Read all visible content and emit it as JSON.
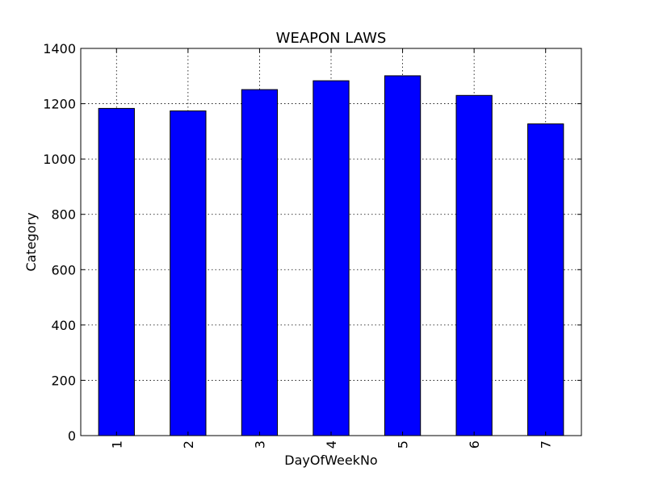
{
  "chart_data": {
    "type": "bar",
    "title": "WEAPON LAWS",
    "xlabel": "DayOfWeekNo",
    "ylabel": "Category",
    "categories": [
      "1",
      "2",
      "3",
      "4",
      "5",
      "6",
      "7"
    ],
    "values": [
      1183,
      1174,
      1251,
      1283,
      1301,
      1230,
      1127
    ],
    "ylim": [
      0,
      1400
    ],
    "yticks": [
      0,
      200,
      400,
      600,
      800,
      1000,
      1200,
      1400
    ],
    "grid": true,
    "bar_color": "#0000ff",
    "x_tick_rotation": "vertical"
  }
}
